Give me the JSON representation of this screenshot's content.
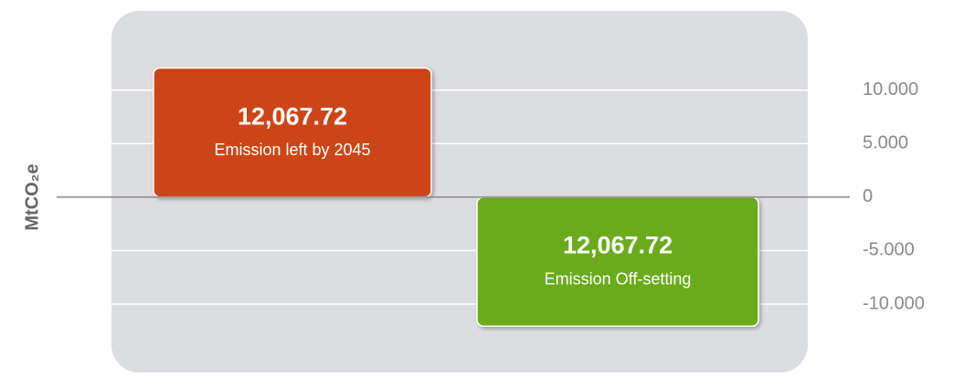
{
  "chart_data": {
    "type": "bar",
    "ylabel": "MtCO₂e",
    "categories": [
      "Emission left by 2045",
      "Emission Off-setting"
    ],
    "values": [
      12067.72,
      -12067.72
    ],
    "value_labels": [
      "12,067.72",
      "12,067.72"
    ],
    "colors": [
      "#cc4512",
      "#6aab1f"
    ],
    "ylim": [
      -16400,
      17400
    ],
    "yticks": [
      {
        "value": 10000,
        "label": "10.000"
      },
      {
        "value": 5000,
        "label": "5.000"
      },
      0,
      {
        "value": -5000,
        "label": "-5.000"
      },
      {
        "value": -10000,
        "label": "-10.000"
      }
    ],
    "grid": true
  }
}
